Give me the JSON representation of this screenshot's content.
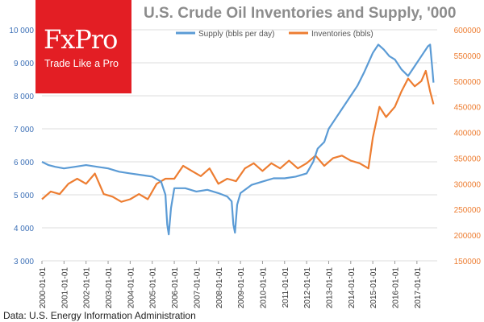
{
  "brand": {
    "name": "FxPro",
    "tagline": "Trade Like a Pro",
    "color": "#e31e24"
  },
  "source_note": "Data: U.S. Energy Information Administration",
  "chart_data": {
    "type": "line",
    "title": "U.S. Crude Oil Inventories and Supply, '000",
    "x_tick_labels": [
      "2000-01-01",
      "2001-01-01",
      "2002-01-01",
      "2003-01-01",
      "2004-01-01",
      "2005-01-01",
      "2006-01-01",
      "2007-01-01",
      "2008-01-01",
      "2009-01-01",
      "2010-01-01",
      "2011-01-01",
      "2012-01-01",
      "2013-01-01",
      "2014-01-01",
      "2015-01-01",
      "2016-01-01",
      "2017-01-01"
    ],
    "left_axis": {
      "range": [
        3000,
        10000
      ],
      "ticks": [
        3000,
        4000,
        5000,
        6000,
        7000,
        8000,
        9000,
        10000
      ],
      "tick_labels": [
        "3 000",
        "4 000",
        "5 000",
        "6 000",
        "7 000",
        "8 000",
        "9 000",
        "10 000"
      ],
      "color": "#5b9bd5"
    },
    "right_axis": {
      "range": [
        150000,
        600000
      ],
      "ticks": [
        150000,
        200000,
        250000,
        300000,
        350000,
        400000,
        450000,
        500000,
        550000,
        600000
      ],
      "tick_labels": [
        "150000",
        "200000",
        "250000",
        "300000",
        "350000",
        "400000",
        "450000",
        "500000",
        "550000",
        "600000"
      ],
      "color": "#ed7d31"
    },
    "series": [
      {
        "name": "Supply (bbls per day)",
        "axis": "left",
        "color": "#5b9bd5",
        "x": [
          2000.0,
          2000.3,
          2000.6,
          2001.0,
          2001.5,
          2002.0,
          2002.5,
          2003.0,
          2003.5,
          2004.0,
          2004.5,
          2005.0,
          2005.4,
          2005.6,
          2005.68,
          2005.75,
          2005.85,
          2006.0,
          2006.5,
          2007.0,
          2007.5,
          2008.0,
          2008.4,
          2008.6,
          2008.68,
          2008.75,
          2008.85,
          2009.0,
          2009.5,
          2010.0,
          2010.5,
          2011.0,
          2011.5,
          2012.0,
          2012.3,
          2012.5,
          2012.8,
          2013.0,
          2013.3,
          2013.6,
          2014.0,
          2014.3,
          2014.6,
          2015.0,
          2015.25,
          2015.5,
          2015.75,
          2016.0,
          2016.3,
          2016.6,
          2016.9,
          2017.2,
          2017.5,
          2017.6,
          2017.7,
          2017.75
        ],
        "values": [
          6000,
          5900,
          5850,
          5800,
          5850,
          5900,
          5850,
          5800,
          5700,
          5650,
          5600,
          5550,
          5400,
          5000,
          4100,
          3800,
          4600,
          5200,
          5200,
          5100,
          5150,
          5050,
          4950,
          4800,
          4100,
          3850,
          4700,
          5050,
          5300,
          5400,
          5500,
          5500,
          5550,
          5650,
          6000,
          6400,
          6600,
          7000,
          7300,
          7600,
          8000,
          8300,
          8700,
          9300,
          9550,
          9400,
          9200,
          9100,
          8800,
          8600,
          8900,
          9200,
          9500,
          9550,
          8800,
          8400
        ]
      },
      {
        "name": "Inventories (bbls)",
        "axis": "right",
        "color": "#ed7d31",
        "x": [
          2000.0,
          2000.4,
          2000.8,
          2001.2,
          2001.6,
          2002.0,
          2002.4,
          2002.8,
          2003.2,
          2003.6,
          2004.0,
          2004.4,
          2004.8,
          2005.2,
          2005.6,
          2006.0,
          2006.4,
          2006.8,
          2007.2,
          2007.6,
          2008.0,
          2008.4,
          2008.8,
          2009.2,
          2009.6,
          2010.0,
          2010.4,
          2010.8,
          2011.2,
          2011.6,
          2012.0,
          2012.4,
          2012.8,
          2013.2,
          2013.6,
          2014.0,
          2014.4,
          2014.8,
          2015.0,
          2015.3,
          2015.6,
          2016.0,
          2016.3,
          2016.6,
          2016.9,
          2017.2,
          2017.4,
          2017.6,
          2017.75
        ],
        "values": [
          270000,
          285000,
          280000,
          300000,
          310000,
          300000,
          320000,
          280000,
          275000,
          265000,
          270000,
          280000,
          270000,
          300000,
          310000,
          310000,
          335000,
          325000,
          315000,
          330000,
          300000,
          310000,
          305000,
          330000,
          340000,
          325000,
          340000,
          330000,
          345000,
          330000,
          340000,
          355000,
          335000,
          350000,
          355000,
          345000,
          340000,
          330000,
          390000,
          450000,
          430000,
          450000,
          480000,
          505000,
          490000,
          500000,
          520000,
          480000,
          455000
        ]
      }
    ],
    "legend": "top-center",
    "grid": true
  }
}
